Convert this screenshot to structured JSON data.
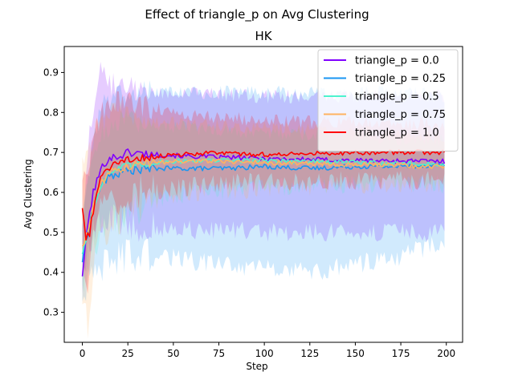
{
  "chart_data": {
    "type": "line",
    "title": "Effect of triangle_p on  Avg Clustering",
    "subtitle": "HK",
    "xlabel": "Step",
    "ylabel": "Avg Clustering",
    "xlim": [
      -9.95,
      208.95
    ],
    "ylim": [
      0.225,
      0.965
    ],
    "xticks": [
      0,
      25,
      50,
      75,
      100,
      125,
      150,
      175,
      200
    ],
    "yticks": [
      0.3,
      0.4,
      0.5,
      0.6,
      0.7,
      0.8,
      0.9
    ],
    "grid": false,
    "legend_position": "top-right",
    "x": "0..199 (one point per step)",
    "series": [
      {
        "name": "triangle_p = 0.0",
        "color": "#8000ff",
        "mean_profile": [
          [
            0,
            0.395
          ],
          [
            3,
            0.52
          ],
          [
            6,
            0.6
          ],
          [
            10,
            0.655
          ],
          [
            14,
            0.685
          ],
          [
            20,
            0.69
          ],
          [
            25,
            0.7
          ],
          [
            30,
            0.698
          ],
          [
            40,
            0.695
          ],
          [
            60,
            0.69
          ],
          [
            100,
            0.685
          ],
          [
            150,
            0.68
          ],
          [
            199,
            0.678
          ]
        ],
        "band_low": [
          [
            0,
            0.36
          ],
          [
            3,
            0.45
          ],
          [
            6,
            0.5
          ],
          [
            10,
            0.52
          ],
          [
            15,
            0.535
          ],
          [
            25,
            0.525
          ],
          [
            40,
            0.51
          ],
          [
            70,
            0.505
          ],
          [
            100,
            0.5
          ],
          [
            150,
            0.5
          ],
          [
            199,
            0.5
          ]
        ],
        "band_high": [
          [
            0,
            0.52
          ],
          [
            3,
            0.7
          ],
          [
            6,
            0.82
          ],
          [
            10,
            0.9
          ],
          [
            15,
            0.87
          ],
          [
            25,
            0.86
          ],
          [
            40,
            0.85
          ],
          [
            70,
            0.845
          ],
          [
            100,
            0.84
          ],
          [
            150,
            0.84
          ],
          [
            199,
            0.84
          ]
        ]
      },
      {
        "name": "triangle_p = 0.25",
        "color": "#1996f3",
        "mean_profile": [
          [
            0,
            0.43
          ],
          [
            3,
            0.5
          ],
          [
            6,
            0.56
          ],
          [
            10,
            0.615
          ],
          [
            15,
            0.64
          ],
          [
            25,
            0.655
          ],
          [
            40,
            0.66
          ],
          [
            60,
            0.66
          ],
          [
            80,
            0.66
          ],
          [
            100,
            0.665
          ],
          [
            125,
            0.66
          ],
          [
            150,
            0.665
          ],
          [
            175,
            0.665
          ],
          [
            199,
            0.67
          ]
        ],
        "band_low": [
          [
            0,
            0.34
          ],
          [
            3,
            0.37
          ],
          [
            6,
            0.39
          ],
          [
            10,
            0.41
          ],
          [
            15,
            0.43
          ],
          [
            25,
            0.44
          ],
          [
            40,
            0.44
          ],
          [
            60,
            0.43
          ],
          [
            80,
            0.42
          ],
          [
            100,
            0.41
          ],
          [
            125,
            0.4
          ],
          [
            150,
            0.42
          ],
          [
            175,
            0.44
          ],
          [
            199,
            0.48
          ]
        ],
        "band_high": [
          [
            0,
            0.52
          ],
          [
            3,
            0.62
          ],
          [
            6,
            0.72
          ],
          [
            10,
            0.8
          ],
          [
            15,
            0.84
          ],
          [
            25,
            0.85
          ],
          [
            40,
            0.85
          ],
          [
            60,
            0.85
          ],
          [
            80,
            0.85
          ],
          [
            100,
            0.85
          ],
          [
            125,
            0.85
          ],
          [
            150,
            0.85
          ],
          [
            175,
            0.85
          ],
          [
            199,
            0.84
          ]
        ]
      },
      {
        "name": "triangle_p = 0.5",
        "color": "#4df3ce",
        "mean_profile": [
          [
            0,
            0.45
          ],
          [
            3,
            0.5
          ],
          [
            6,
            0.56
          ],
          [
            10,
            0.62
          ],
          [
            15,
            0.65
          ],
          [
            25,
            0.665
          ],
          [
            40,
            0.675
          ],
          [
            60,
            0.68
          ],
          [
            100,
            0.68
          ],
          [
            150,
            0.675
          ],
          [
            199,
            0.67
          ]
        ],
        "band_low": [
          [
            0,
            0.38
          ],
          [
            3,
            0.42
          ],
          [
            6,
            0.45
          ],
          [
            10,
            0.5
          ],
          [
            15,
            0.52
          ],
          [
            25,
            0.55
          ],
          [
            40,
            0.58
          ],
          [
            60,
            0.6
          ],
          [
            100,
            0.61
          ],
          [
            150,
            0.62
          ],
          [
            199,
            0.62
          ]
        ],
        "band_high": [
          [
            0,
            0.55
          ],
          [
            3,
            0.63
          ],
          [
            6,
            0.7
          ],
          [
            10,
            0.75
          ],
          [
            15,
            0.77
          ],
          [
            25,
            0.78
          ],
          [
            40,
            0.77
          ],
          [
            60,
            0.76
          ],
          [
            100,
            0.75
          ],
          [
            150,
            0.74
          ],
          [
            199,
            0.73
          ]
        ]
      },
      {
        "name": "triangle_p = 0.75",
        "color": "#ffb360",
        "mean_profile": [
          [
            0,
            0.47
          ],
          [
            3,
            0.5
          ],
          [
            6,
            0.56
          ],
          [
            10,
            0.62
          ],
          [
            15,
            0.65
          ],
          [
            25,
            0.665
          ],
          [
            40,
            0.675
          ],
          [
            60,
            0.68
          ],
          [
            100,
            0.675
          ],
          [
            150,
            0.67
          ],
          [
            199,
            0.665
          ]
        ],
        "band_low": [
          [
            0,
            0.33
          ],
          [
            3,
            0.27
          ],
          [
            6,
            0.4
          ],
          [
            10,
            0.48
          ],
          [
            15,
            0.52
          ],
          [
            25,
            0.55
          ],
          [
            40,
            0.58
          ],
          [
            60,
            0.6
          ],
          [
            100,
            0.61
          ],
          [
            150,
            0.62
          ],
          [
            199,
            0.62
          ]
        ],
        "band_high": [
          [
            0,
            0.69
          ],
          [
            3,
            0.68
          ],
          [
            6,
            0.74
          ],
          [
            10,
            0.77
          ],
          [
            15,
            0.8
          ],
          [
            25,
            0.8
          ],
          [
            40,
            0.78
          ],
          [
            60,
            0.77
          ],
          [
            100,
            0.76
          ],
          [
            150,
            0.75
          ],
          [
            199,
            0.74
          ]
        ]
      },
      {
        "name": "triangle_p = 1.0",
        "color": "#ff0000",
        "mean_profile": [
          [
            0,
            0.565
          ],
          [
            2,
            0.48
          ],
          [
            4,
            0.5
          ],
          [
            7,
            0.58
          ],
          [
            10,
            0.64
          ],
          [
            15,
            0.66
          ],
          [
            20,
            0.675
          ],
          [
            25,
            0.68
          ],
          [
            30,
            0.685
          ],
          [
            40,
            0.69
          ],
          [
            50,
            0.695
          ],
          [
            70,
            0.698
          ],
          [
            100,
            0.695
          ],
          [
            125,
            0.697
          ],
          [
            150,
            0.7
          ],
          [
            175,
            0.7
          ],
          [
            199,
            0.7
          ]
        ],
        "band_low": [
          [
            0,
            0.47
          ],
          [
            2,
            0.35
          ],
          [
            4,
            0.4
          ],
          [
            7,
            0.5
          ],
          [
            10,
            0.55
          ],
          [
            15,
            0.57
          ],
          [
            20,
            0.58
          ],
          [
            30,
            0.6
          ],
          [
            50,
            0.61
          ],
          [
            70,
            0.62
          ],
          [
            100,
            0.625
          ],
          [
            150,
            0.63
          ],
          [
            199,
            0.63
          ]
        ],
        "band_high": [
          [
            0,
            0.63
          ],
          [
            2,
            0.62
          ],
          [
            4,
            0.68
          ],
          [
            7,
            0.75
          ],
          [
            10,
            0.8
          ],
          [
            15,
            0.82
          ],
          [
            20,
            0.83
          ],
          [
            30,
            0.82
          ],
          [
            50,
            0.8
          ],
          [
            70,
            0.79
          ],
          [
            100,
            0.78
          ],
          [
            150,
            0.775
          ],
          [
            199,
            0.77
          ]
        ]
      }
    ]
  }
}
